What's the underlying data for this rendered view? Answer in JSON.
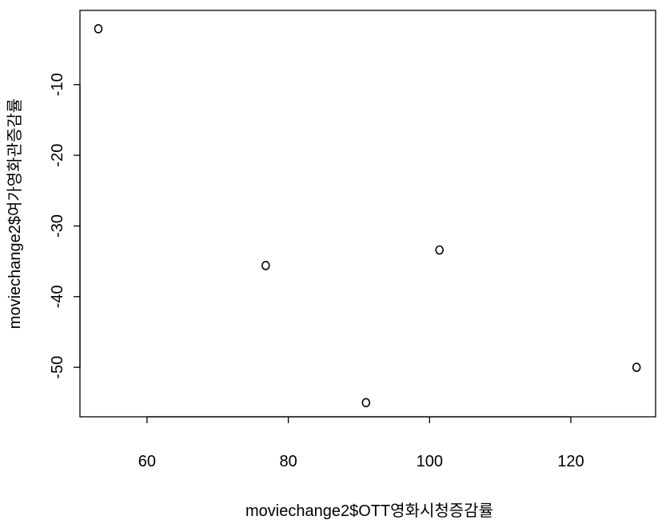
{
  "chart_data": {
    "type": "scatter",
    "title": "",
    "xlabel": "moviechange2$OTT영화시청증감률",
    "ylabel": "moviechange2$여가영화관증감률",
    "xlim": [
      50.5,
      132
    ],
    "ylim": [
      -57,
      0.5
    ],
    "xticks": [
      60,
      80,
      100,
      120
    ],
    "yticks": [
      -10,
      -20,
      -30,
      -40,
      -50
    ],
    "grid": false,
    "point_symbol": "o",
    "points": [
      {
        "x": 53.1,
        "y": -2.1
      },
      {
        "x": 76.8,
        "y": -35.6
      },
      {
        "x": 91.0,
        "y": -55.0
      },
      {
        "x": 101.4,
        "y": -33.4
      },
      {
        "x": 129.3,
        "y": -50.0
      }
    ]
  }
}
